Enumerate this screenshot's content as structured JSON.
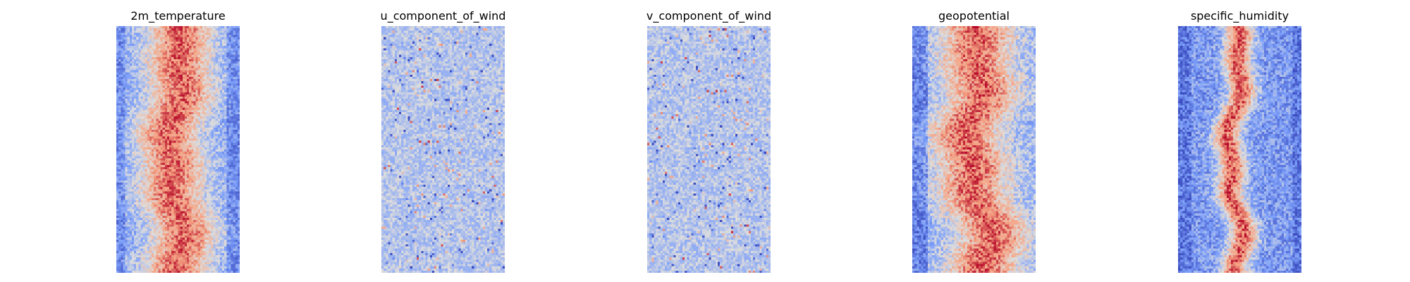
{
  "chart_data": [
    {
      "type": "heatmap",
      "title": "2m_temperature",
      "pattern": "warm_band",
      "colormap": "coolwarm",
      "axes": "off",
      "grid": false,
      "legend": "none"
    },
    {
      "type": "heatmap",
      "title": "u_component_of_wind",
      "pattern": "near_neutral_wind",
      "colormap": "coolwarm",
      "axes": "off",
      "grid": false,
      "legend": "none"
    },
    {
      "type": "heatmap",
      "title": "v_component_of_wind",
      "pattern": "near_neutral_wind",
      "colormap": "coolwarm",
      "axes": "off",
      "grid": false,
      "legend": "none"
    },
    {
      "type": "heatmap",
      "title": "geopotential",
      "pattern": "warm_band_offset",
      "colormap": "coolwarm",
      "axes": "off",
      "grid": false,
      "legend": "none"
    },
    {
      "type": "heatmap",
      "title": "specific_humidity",
      "pattern": "humid_core",
      "colormap": "coolwarm",
      "axes": "off",
      "grid": false,
      "legend": "none"
    }
  ],
  "colors": {
    "cool": "#3b4cc0",
    "neutral": "#dddddd",
    "warm": "#b40426"
  }
}
